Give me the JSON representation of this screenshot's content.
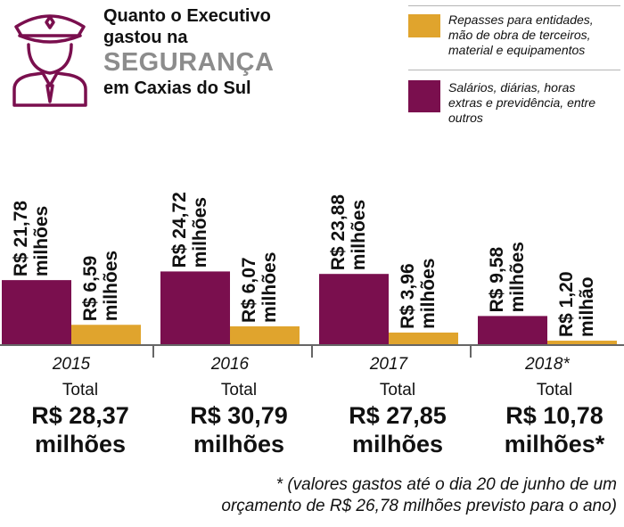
{
  "header": {
    "title_line1": "Quanto o Executivo",
    "title_line2": "gastou na",
    "title_highlight": "SEGURANÇA",
    "title_line4": "em Caxias do Sul",
    "icon": "security-guard-icon"
  },
  "legend": [
    {
      "label_lines": [
        "Repasses para entidades,",
        "mão de obra de terceiros,",
        "material e equipamentos"
      ],
      "color": "#e0a42d"
    },
    {
      "label_lines": [
        "Salários, diárias, horas",
        "extras e previdência, entre",
        "outros"
      ],
      "color": "#7a0f4e"
    }
  ],
  "colors": {
    "salarios": "#7a0f4e",
    "repasses": "#e0a42d",
    "axis": "#666666",
    "title_highlight": "#8c8c8c"
  },
  "chart_data": {
    "type": "bar",
    "categories": [
      "2015",
      "2016",
      "2017",
      "2018*"
    ],
    "series": [
      {
        "name": "Salários, diárias, horas extras e previdência, entre outros",
        "values": [
          21.78,
          24.72,
          23.88,
          9.58
        ]
      },
      {
        "name": "Repasses para entidades, mão de obra de terceiros, material e equipamentos",
        "values": [
          6.59,
          6.07,
          3.96,
          1.2
        ]
      }
    ],
    "value_labels": [
      [
        "R$ 21,78 milhões",
        "R$ 24,72 milhões",
        "R$ 23,88 milhões",
        "R$ 9,58 milhões"
      ],
      [
        "R$ 6,59 milhões",
        "R$ 6,07 milhões",
        "R$ 3,96 milhões",
        "R$ 1,20 milhão"
      ]
    ],
    "totals": [
      "R$ 28,37 milhões",
      "R$ 30,79 milhões",
      "R$ 27,85 milhões",
      "R$ 10,78 milhões*"
    ],
    "total_caption": "Total",
    "unit": "R$ milhões",
    "title": "Quanto o Executivo gastou na SEGURANÇA em Caxias do Sul",
    "grid": false,
    "legend_position": "top-right"
  },
  "totals": [
    {
      "caption": "Total",
      "line1": "R$ 28,37",
      "line2": "milhões"
    },
    {
      "caption": "Total",
      "line1": "R$ 30,79",
      "line2": "milhões"
    },
    {
      "caption": "Total",
      "line1": "R$ 27,85",
      "line2": "milhões"
    },
    {
      "caption": "Total",
      "line1": "R$ 10,78",
      "line2": "milhões*"
    }
  ],
  "footnote": {
    "line1": "* (valores gastos até o dia 20 de junho de um",
    "line2": "orçamento de R$ 26,78 milhões previsto para o ano)"
  }
}
